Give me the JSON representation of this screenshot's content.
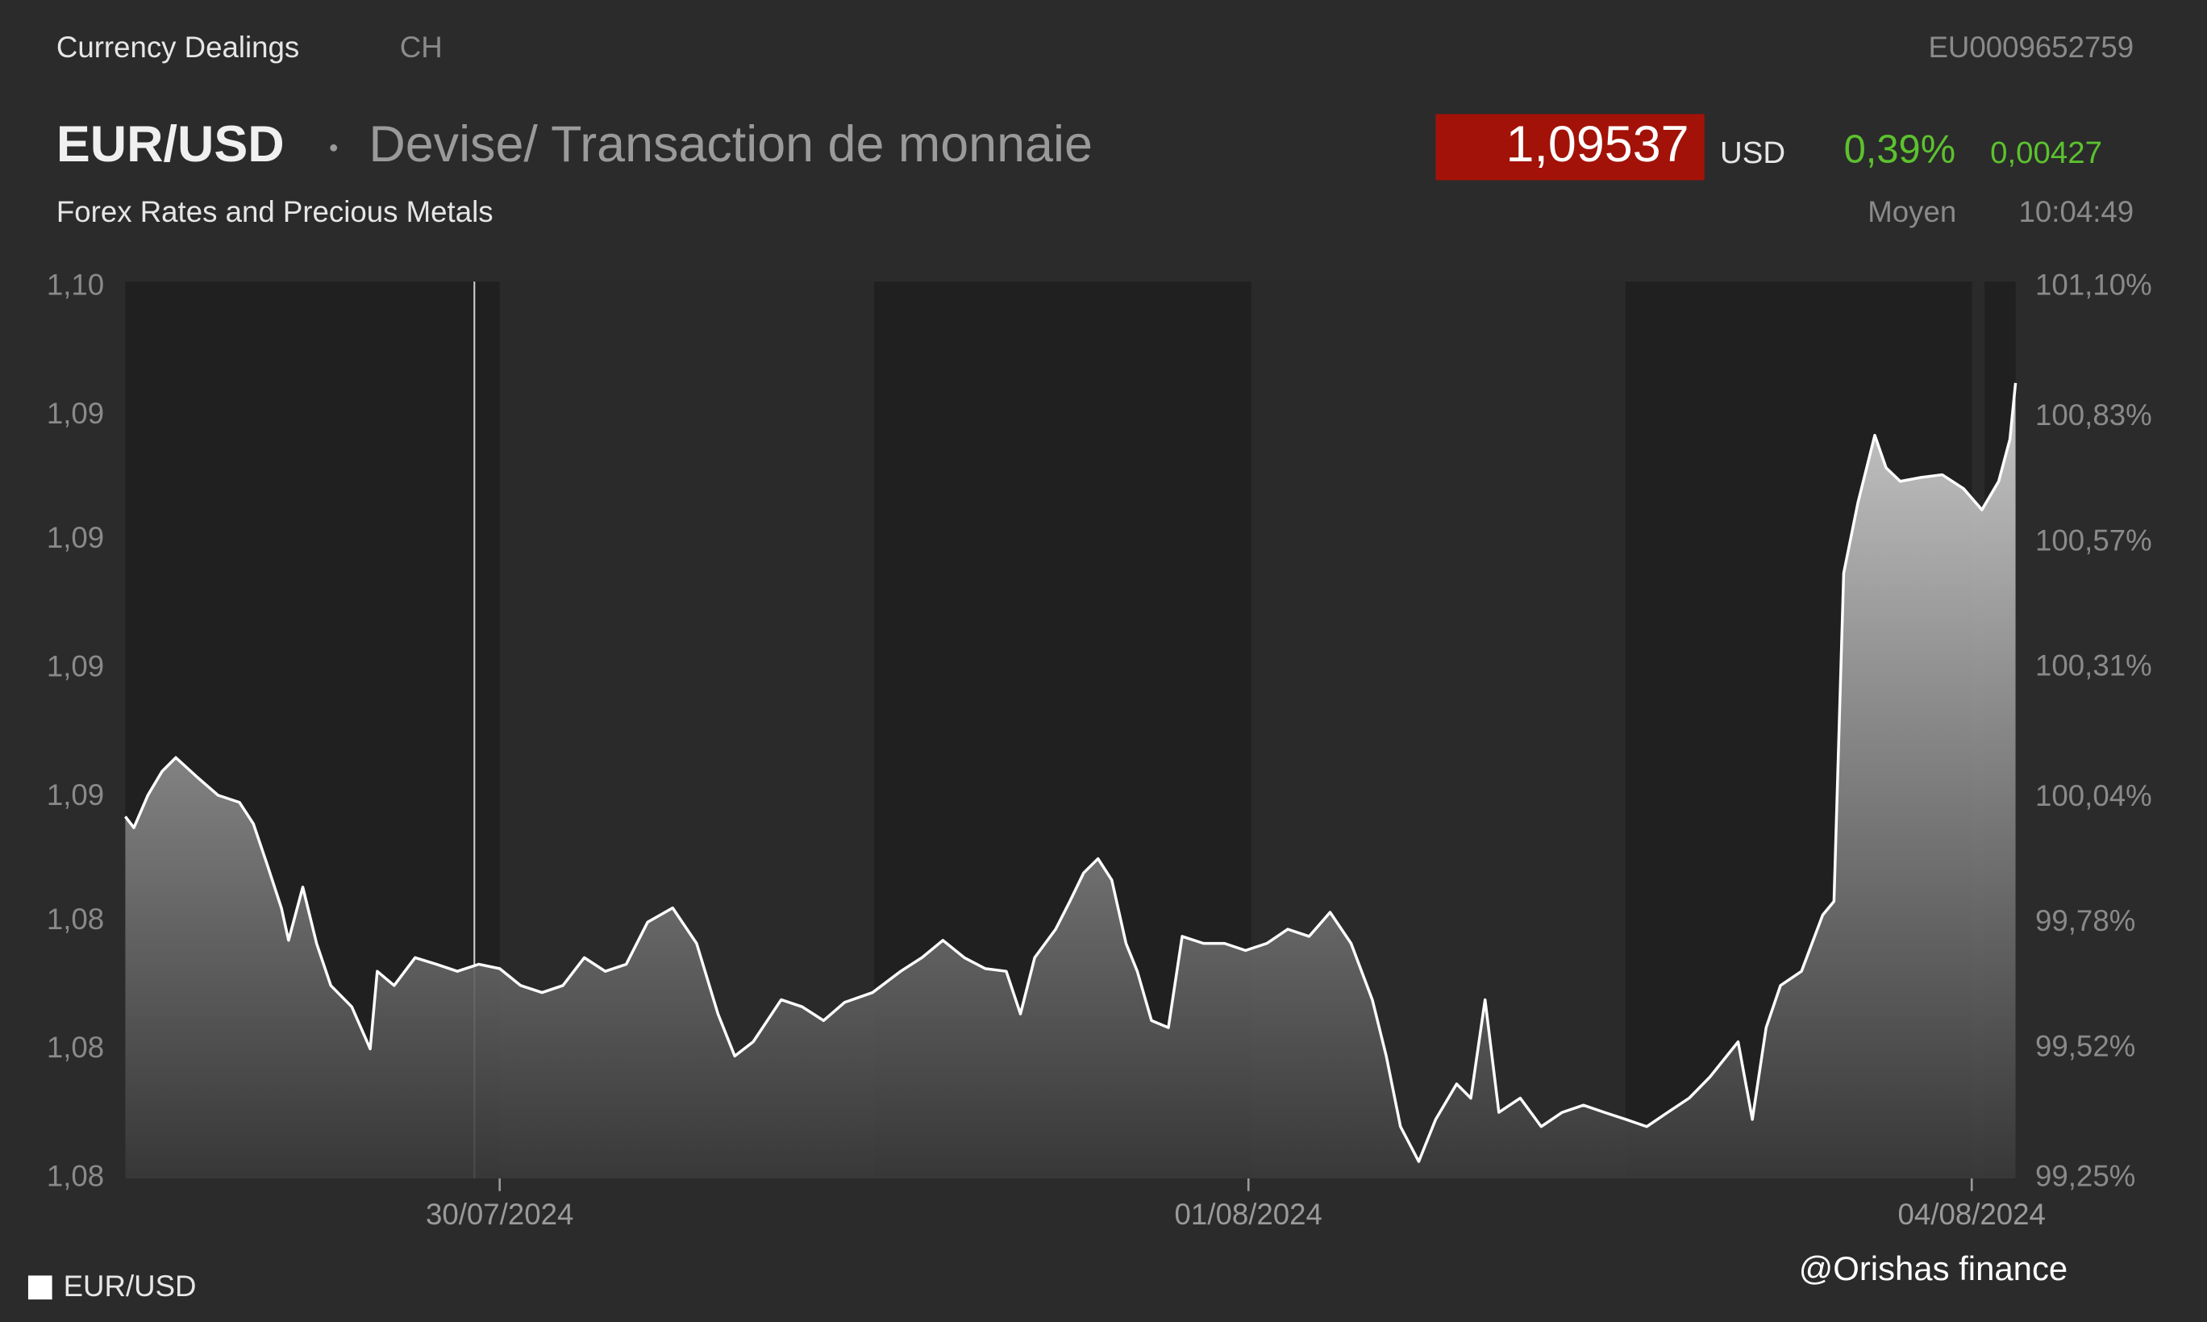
{
  "header": {
    "source": "Currency Dealings",
    "country": "CH",
    "isin": "EU0009652759",
    "title": "EUR/USD",
    "subtitle": "Devise/ Transaction de monnaie",
    "exchange": "Forex Rates and Precious Metals",
    "price": "1,09537",
    "currency": "USD",
    "change_pct": "0,39%",
    "change_abs": "0,00427",
    "price_type": "Moyen",
    "time": "10:04:49"
  },
  "watermark": "@Orishas finance",
  "chart_data": {
    "type": "area",
    "x": [
      0,
      0.023,
      0.06,
      0.098,
      0.135,
      0.192,
      0.248,
      0.305,
      0.342,
      0.38,
      0.417,
      0.436,
      0.474,
      0.511,
      0.549,
      0.605,
      0.654,
      0.673,
      0.718,
      0.774,
      0.831,
      0.887,
      0.944,
      1.0,
      1.056,
      1.113,
      1.169,
      1.226,
      1.282,
      1.338,
      1.395,
      1.462,
      1.526,
      1.583,
      1.628,
      1.677,
      1.752,
      1.808,
      1.865,
      1.921,
      1.996,
      2.071,
      2.128,
      2.184,
      2.241,
      2.297,
      2.353,
      2.391,
      2.429,
      2.485,
      2.523,
      2.56,
      2.598,
      2.635,
      2.673,
      2.703,
      2.741,
      2.786,
      2.823,
      2.88,
      2.936,
      2.992,
      3.049,
      3.105,
      3.162,
      3.218,
      3.274,
      3.331,
      3.368,
      3.406,
      3.455,
      3.5,
      3.556,
      3.594,
      3.632,
      3.669,
      3.726,
      3.782,
      3.838,
      3.895,
      3.951,
      4.008,
      4.064,
      4.12,
      4.177,
      4.233,
      4.308,
      4.346,
      4.383,
      4.421,
      4.477,
      4.534,
      4.564,
      4.59,
      4.628,
      4.673,
      4.703,
      4.741,
      4.797,
      4.853,
      4.91,
      4.959,
      5.004,
      5.034,
      5.049
    ],
    "series": [
      {
        "name": "EUR/USD",
        "color": "#ffffff",
        "values": [
          1.08616,
          1.08591,
          1.08664,
          1.08718,
          1.08749,
          1.08705,
          1.08664,
          1.08648,
          1.086,
          1.08505,
          1.0841,
          1.08337,
          1.08457,
          1.0833,
          1.08235,
          1.08187,
          1.08092,
          1.08267,
          1.08235,
          1.08298,
          1.08283,
          1.08267,
          1.08283,
          1.08273,
          1.08235,
          1.08219,
          1.08235,
          1.08298,
          1.08267,
          1.08283,
          1.08378,
          1.0841,
          1.0833,
          1.08171,
          1.08076,
          1.08108,
          1.08203,
          1.08187,
          1.08156,
          1.08197,
          1.08219,
          1.08267,
          1.08298,
          1.08337,
          1.08298,
          1.08273,
          1.08267,
          1.08171,
          1.08298,
          1.08362,
          1.08425,
          1.08489,
          1.08521,
          1.08473,
          1.0833,
          1.08267,
          1.08156,
          1.0814,
          1.08346,
          1.0833,
          1.0833,
          1.08314,
          1.0833,
          1.08362,
          1.08346,
          1.084,
          1.0833,
          1.08203,
          1.08076,
          1.07917,
          1.07838,
          1.07933,
          1.08013,
          1.07981,
          1.08203,
          1.07949,
          1.07981,
          1.07917,
          1.07949,
          1.07965,
          1.07949,
          1.07933,
          1.07917,
          1.07949,
          1.07981,
          1.08029,
          1.08108,
          1.07933,
          1.0814,
          1.08235,
          1.08267,
          1.08394,
          1.08425,
          1.09165,
          1.09324,
          1.09476,
          1.09403,
          1.09372,
          1.09381,
          1.09387,
          1.09356,
          1.09308,
          1.09372,
          1.09467,
          1.09594
        ]
      }
    ],
    "xlim": [
      0,
      5.049
    ],
    "xticks": [
      {
        "value": 1,
        "label": "30/07/2024"
      },
      {
        "value": 3,
        "label": "01/08/2024"
      },
      {
        "value": 4.932,
        "label": "04/08/2024"
      }
    ],
    "ylim": [
      1.078,
      1.0981
    ],
    "yticks": [
      {
        "value": 1.078,
        "label": "1,08"
      },
      {
        "value": 1.0809,
        "label": "1,08"
      },
      {
        "value": 1.0838,
        "label": "1,08"
      },
      {
        "value": 1.0866,
        "label": "1,09"
      },
      {
        "value": 1.0895,
        "label": "1,09"
      },
      {
        "value": 1.0924,
        "label": "1,09"
      },
      {
        "value": 1.0952,
        "label": "1,09"
      },
      {
        "value": 1.0981,
        "label": "1,10"
      }
    ],
    "y2lim": [
      99.25,
      101.1
    ],
    "y2ticks": [
      {
        "value": 99.25,
        "label": "99,25%"
      },
      {
        "value": 99.52,
        "label": "99,52%"
      },
      {
        "value": 99.78,
        "label": "99,78%"
      },
      {
        "value": 100.04,
        "label": "100,04%"
      },
      {
        "value": 100.31,
        "label": "100,31%"
      },
      {
        "value": 100.57,
        "label": "100,57%"
      },
      {
        "value": 100.83,
        "label": "100,83%"
      },
      {
        "value": 101.1,
        "label": "101,10%"
      }
    ],
    "grid": false,
    "legend": "bottom-left"
  }
}
